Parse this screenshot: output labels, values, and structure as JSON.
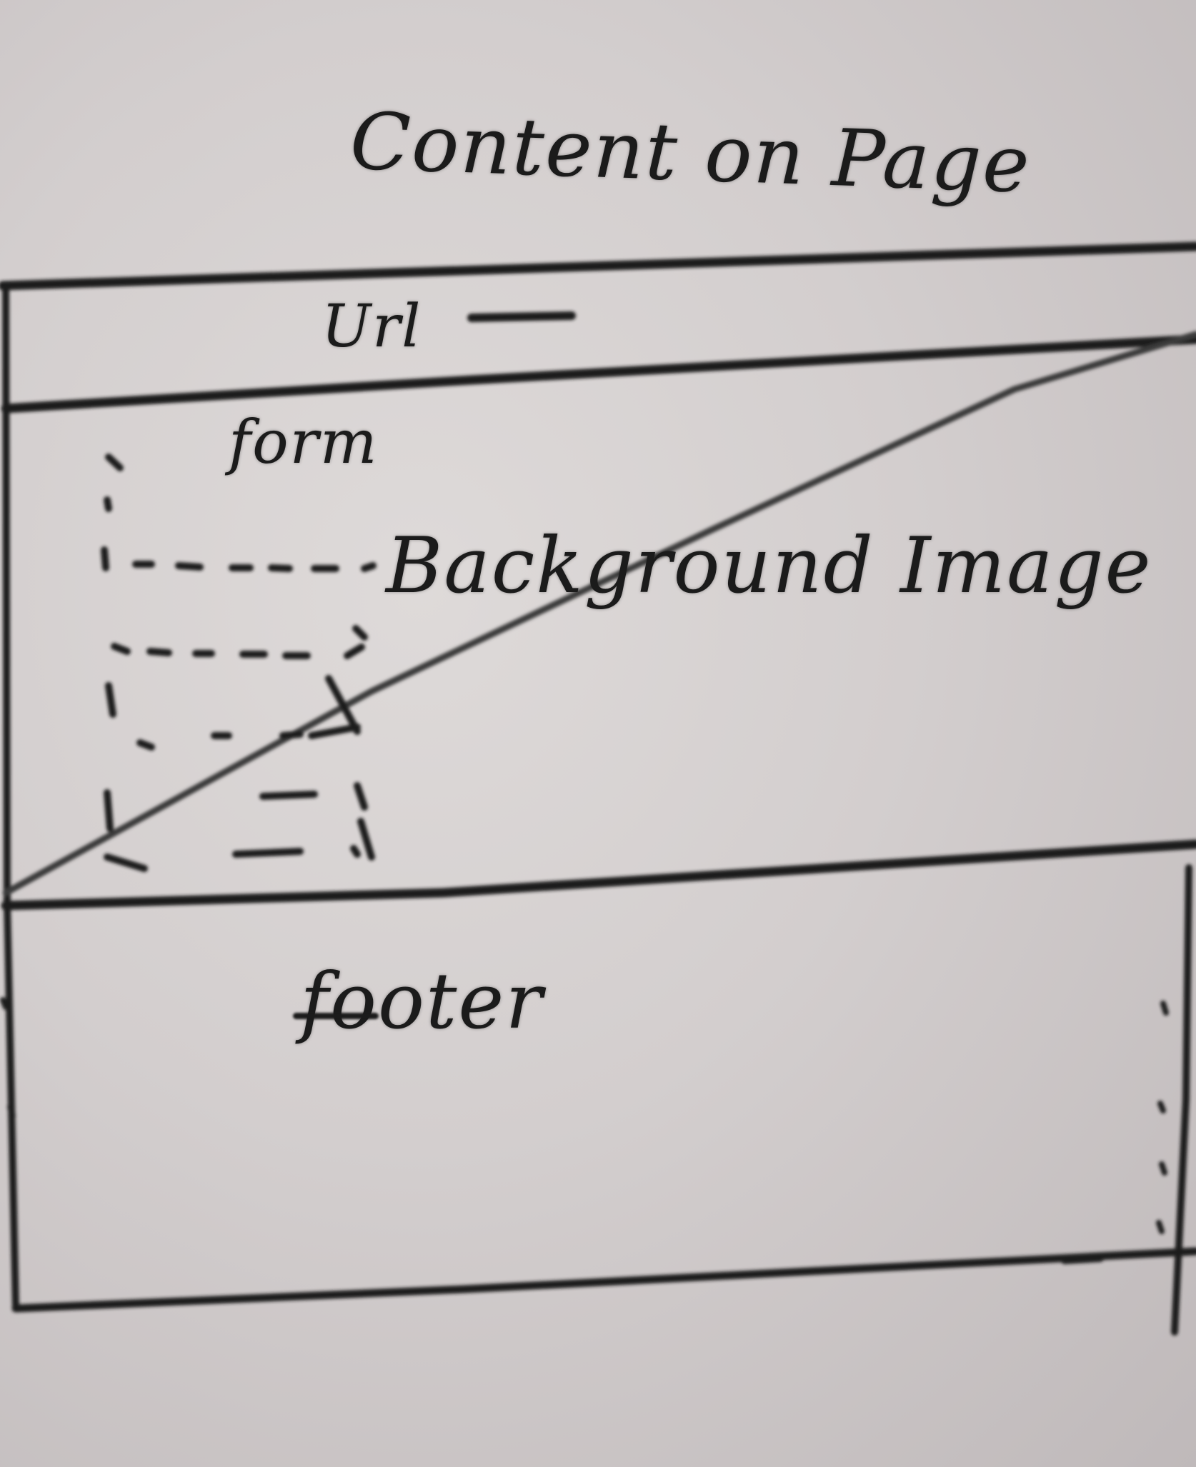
{
  "title": "Content on Page",
  "regions": {
    "url_bar": {
      "label": "Url"
    },
    "form": {
      "label": "form"
    },
    "background": {
      "label": "Background Image"
    },
    "footer": {
      "label": "footer"
    }
  },
  "colors": {
    "paper": "#d3cece",
    "ink": "#1b1b1b"
  }
}
